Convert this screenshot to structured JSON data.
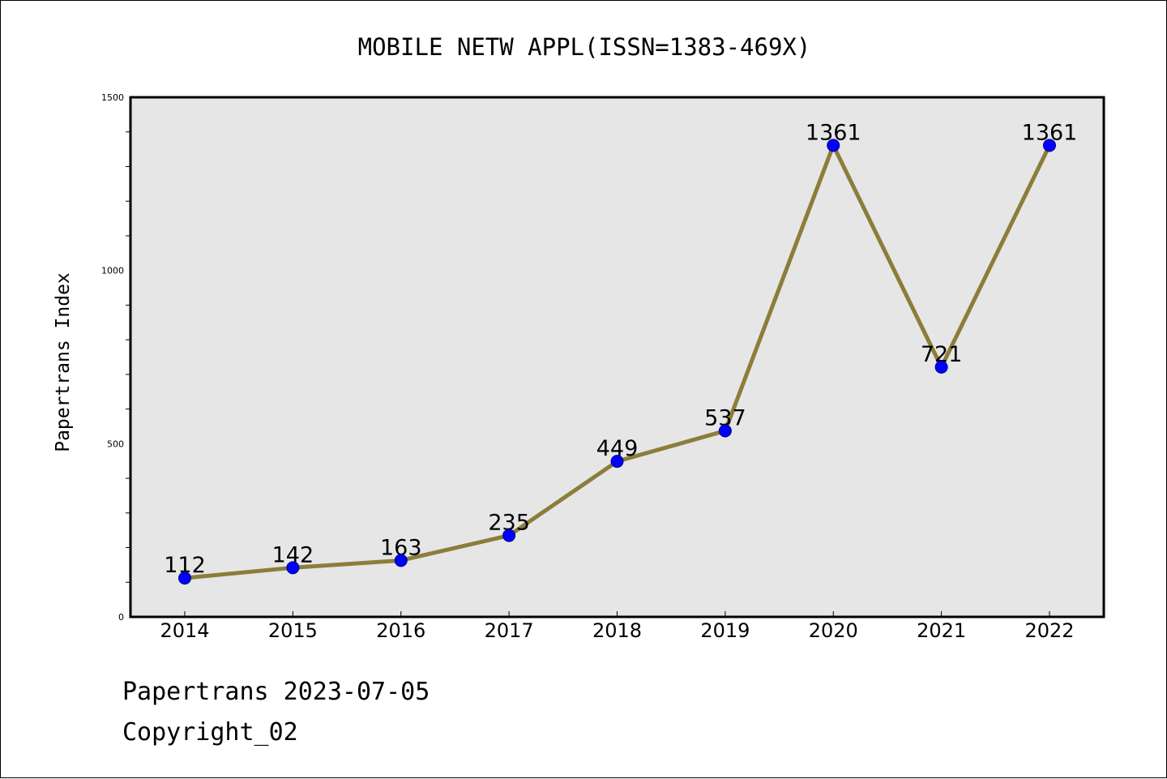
{
  "chart_data": {
    "type": "line",
    "title": "MOBILE NETW APPL(ISSN=1383-469X)",
    "xlabel": "",
    "ylabel": "Papertrans Index",
    "categories": [
      "2014",
      "2015",
      "2016",
      "2017",
      "2018",
      "2019",
      "2020",
      "2021",
      "2022"
    ],
    "series": [
      {
        "values": [
          112,
          142,
          163,
          235,
          449,
          537,
          1361,
          721,
          1361
        ]
      }
    ],
    "data_labels": [
      "112",
      "142",
      "163",
      "235",
      "449",
      "537",
      "1361",
      "721",
      "1361"
    ],
    "ylim": [
      0,
      1500
    ],
    "yticks": [
      0,
      500,
      1000,
      1500
    ],
    "ytick_labels": [
      "0",
      "500",
      "1000",
      "1500"
    ],
    "grid": false,
    "legend": "none",
    "colors": {
      "line": "#8b7d3a",
      "marker": "#0000ff",
      "plot_background": "#e6e6e6"
    }
  },
  "footer": {
    "date_line": "Papertrans 2023-07-05",
    "copyright_line": "Copyright_02"
  }
}
